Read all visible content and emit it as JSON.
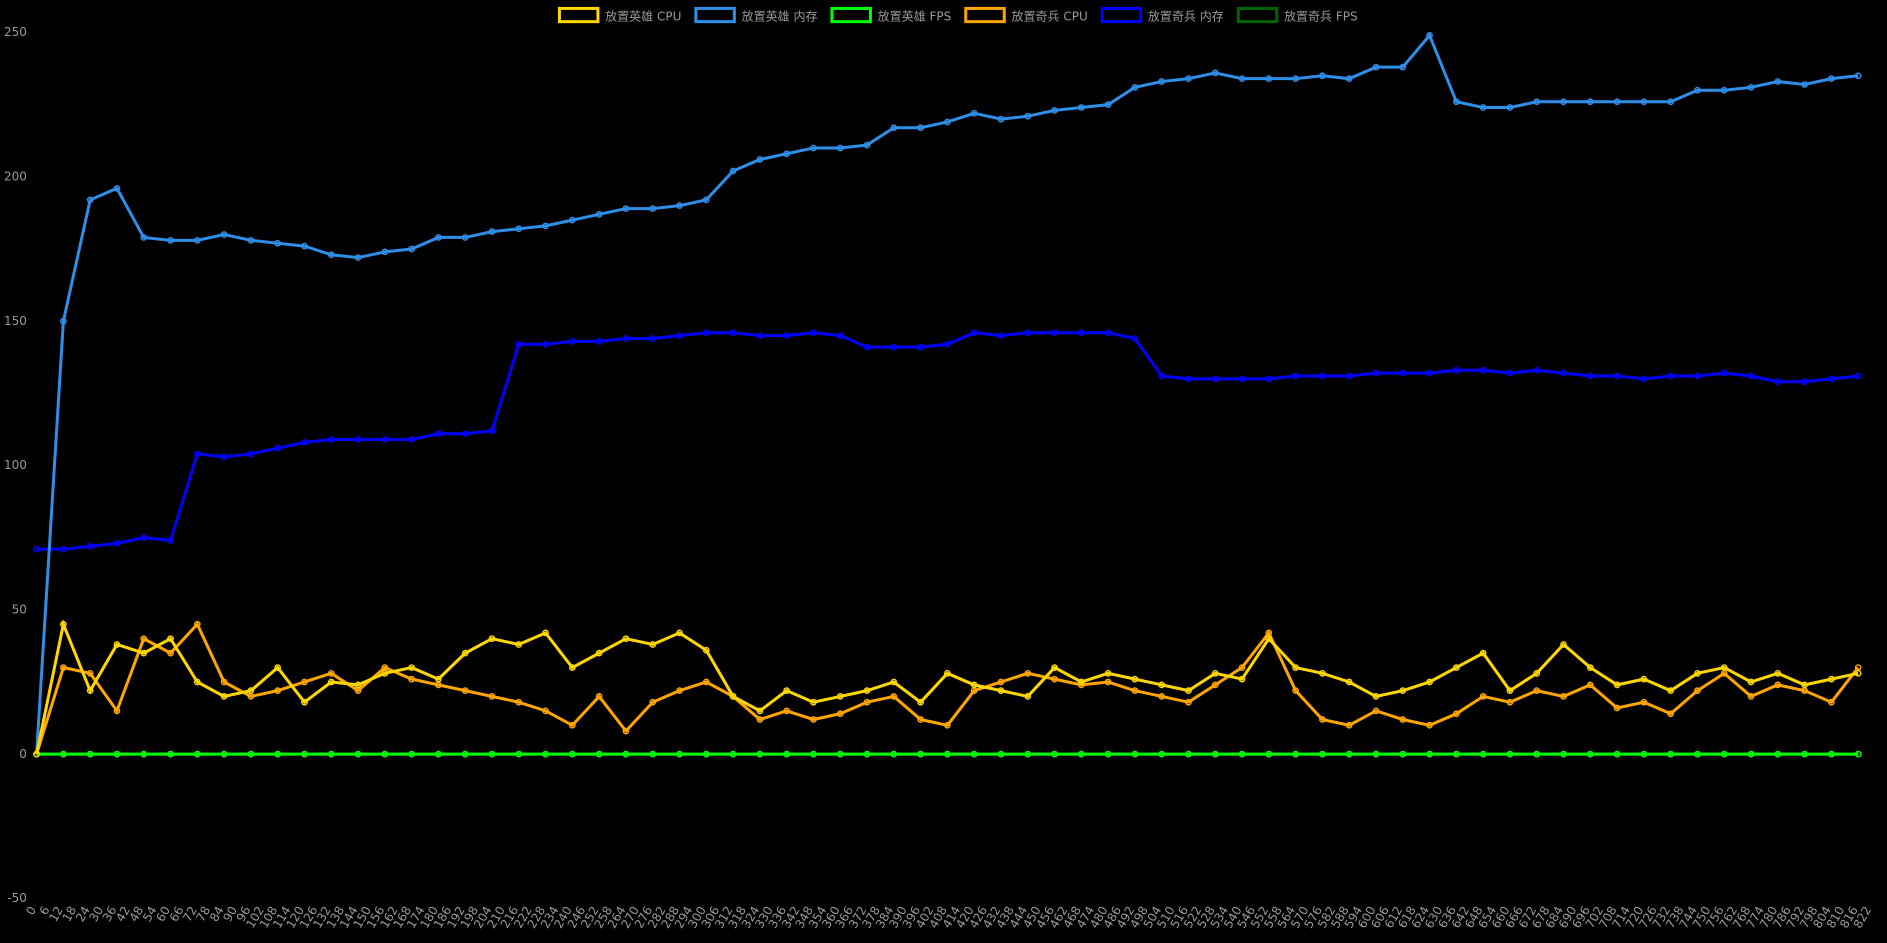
{
  "chart_data": {
    "type": "line",
    "grid": false,
    "legend": "top",
    "xlim": [
      0,
      826
    ],
    "ylim": [
      -50,
      250
    ],
    "yticks": [
      -50,
      0,
      50,
      100,
      150,
      200,
      250
    ],
    "xticks": [
      0,
      6,
      12,
      18,
      24,
      30,
      36,
      42,
      48,
      54,
      60,
      66,
      72,
      78,
      84,
      90,
      96,
      102,
      108,
      114,
      120,
      126,
      132,
      138,
      144,
      150,
      156,
      162,
      168,
      174,
      180,
      186,
      192,
      198,
      204,
      210,
      216,
      222,
      228,
      234,
      240,
      246,
      252,
      258,
      264,
      270,
      276,
      282,
      288,
      294,
      300,
      306,
      312,
      318,
      324,
      330,
      336,
      342,
      348,
      354,
      360,
      366,
      372,
      378,
      384,
      390,
      396,
      402,
      408,
      414,
      420,
      426,
      432,
      438,
      444,
      450,
      456,
      462,
      468,
      474,
      480,
      486,
      492,
      498,
      504,
      510,
      516,
      522,
      528,
      534,
      540,
      546,
      552,
      558,
      564,
      570,
      576,
      582,
      588,
      594,
      600,
      606,
      612,
      618,
      624,
      630,
      636,
      642,
      648,
      654,
      660,
      666,
      672,
      678,
      684,
      690,
      696,
      702,
      708,
      714,
      720,
      726,
      732,
      738,
      744,
      750,
      756,
      762,
      768,
      774,
      780,
      786,
      792,
      798,
      804,
      810,
      816,
      822
    ],
    "x": [
      0,
      12,
      24,
      36,
      48,
      60,
      72,
      84,
      96,
      108,
      120,
      132,
      144,
      156,
      168,
      180,
      192,
      204,
      216,
      228,
      240,
      252,
      264,
      276,
      288,
      300,
      312,
      324,
      336,
      348,
      360,
      372,
      384,
      396,
      408,
      420,
      432,
      444,
      456,
      468,
      480,
      492,
      504,
      516,
      528,
      540,
      552,
      564,
      576,
      588,
      600,
      612,
      624,
      636,
      648,
      660,
      672,
      684,
      696,
      708,
      720,
      732,
      744,
      756,
      768,
      780,
      792,
      804,
      816
    ],
    "series": [
      {
        "name": "放置英雄 CPU",
        "color": "#ffd700",
        "values": [
          0,
          45,
          22,
          38,
          35,
          40,
          25,
          20,
          22,
          30,
          18,
          25,
          24,
          28,
          30,
          26,
          35,
          40,
          38,
          42,
          30,
          35,
          40,
          38,
          42,
          36,
          20,
          15,
          22,
          18,
          20,
          22,
          25,
          18,
          28,
          24,
          22,
          20,
          30,
          25,
          28,
          26,
          24,
          22,
          28,
          26,
          40,
          30,
          28,
          25,
          20,
          22,
          25,
          30,
          35,
          22,
          28,
          38,
          30,
          24,
          26,
          22,
          28,
          30,
          25,
          28,
          24,
          26,
          28
        ]
      },
      {
        "name": "放置英雄 内存",
        "color": "#2f8fe8",
        "values": [
          0,
          150,
          192,
          196,
          179,
          178,
          178,
          180,
          178,
          177,
          176,
          173,
          172,
          174,
          175,
          179,
          179,
          181,
          182,
          183,
          185,
          187,
          189,
          189,
          190,
          192,
          202,
          206,
          208,
          210,
          210,
          211,
          217,
          217,
          219,
          222,
          220,
          221,
          223,
          224,
          225,
          231,
          233,
          234,
          236,
          234,
          234,
          234,
          235,
          234,
          238,
          238,
          249,
          226,
          224,
          224,
          226,
          226,
          226,
          226,
          226,
          226,
          230,
          230,
          231,
          233,
          232,
          234,
          235
        ]
      },
      {
        "name": "放置英雄 FPS",
        "color": "#00ff00",
        "values": [
          0,
          0,
          0,
          0,
          0,
          0,
          0,
          0,
          0,
          0,
          0,
          0,
          0,
          0,
          0,
          0,
          0,
          0,
          0,
          0,
          0,
          0,
          0,
          0,
          0,
          0,
          0,
          0,
          0,
          0,
          0,
          0,
          0,
          0,
          0,
          0,
          0,
          0,
          0,
          0,
          0,
          0,
          0,
          0,
          0,
          0,
          0,
          0,
          0,
          0,
          0,
          0,
          0,
          0,
          0,
          0,
          0,
          0,
          0,
          0,
          0,
          0,
          0,
          0,
          0,
          0,
          0,
          0,
          0
        ]
      },
      {
        "name": "放置奇兵 CPU",
        "color": "#ffa500",
        "values": [
          0,
          30,
          28,
          15,
          40,
          35,
          45,
          25,
          20,
          22,
          25,
          28,
          22,
          30,
          26,
          24,
          22,
          20,
          18,
          15,
          10,
          20,
          8,
          18,
          22,
          25,
          20,
          12,
          15,
          12,
          14,
          18,
          20,
          12,
          10,
          22,
          25,
          28,
          26,
          24,
          25,
          22,
          20,
          18,
          24,
          30,
          42,
          22,
          12,
          10,
          15,
          12,
          10,
          14,
          20,
          18,
          22,
          20,
          24,
          16,
          18,
          14,
          22,
          28,
          20,
          24,
          22,
          18,
          30
        ]
      },
      {
        "name": "放置奇兵 内存",
        "color": "#0000ff",
        "values": [
          71,
          71,
          72,
          73,
          75,
          74,
          104,
          103,
          104,
          106,
          108,
          109,
          109,
          109,
          109,
          111,
          111,
          112,
          142,
          142,
          143,
          143,
          144,
          144,
          145,
          146,
          146,
          145,
          145,
          146,
          145,
          141,
          141,
          141,
          142,
          146,
          145,
          146,
          146,
          146,
          146,
          144,
          131,
          130,
          130,
          130,
          130,
          131,
          131,
          131,
          132,
          132,
          132,
          133,
          133,
          132,
          133,
          132,
          131,
          131,
          130,
          131,
          131,
          132,
          131,
          129,
          129,
          130,
          131
        ]
      },
      {
        "name": "放置奇兵 FPS",
        "color": "#006400",
        "values": [
          0,
          0,
          0,
          0,
          0,
          0,
          0,
          0,
          0,
          0,
          0,
          0,
          0,
          0,
          0,
          0,
          0,
          0,
          0,
          0,
          0,
          0,
          0,
          0,
          0,
          0,
          0,
          0,
          0,
          0,
          0,
          0,
          0,
          0,
          0,
          0,
          0,
          0,
          0,
          0,
          0,
          0,
          0,
          0,
          0,
          0,
          0,
          0,
          0,
          0,
          0,
          0,
          0,
          0,
          0,
          0,
          0,
          0,
          0,
          0,
          0,
          0,
          0,
          0,
          0,
          0,
          0,
          0,
          0
        ]
      }
    ]
  }
}
